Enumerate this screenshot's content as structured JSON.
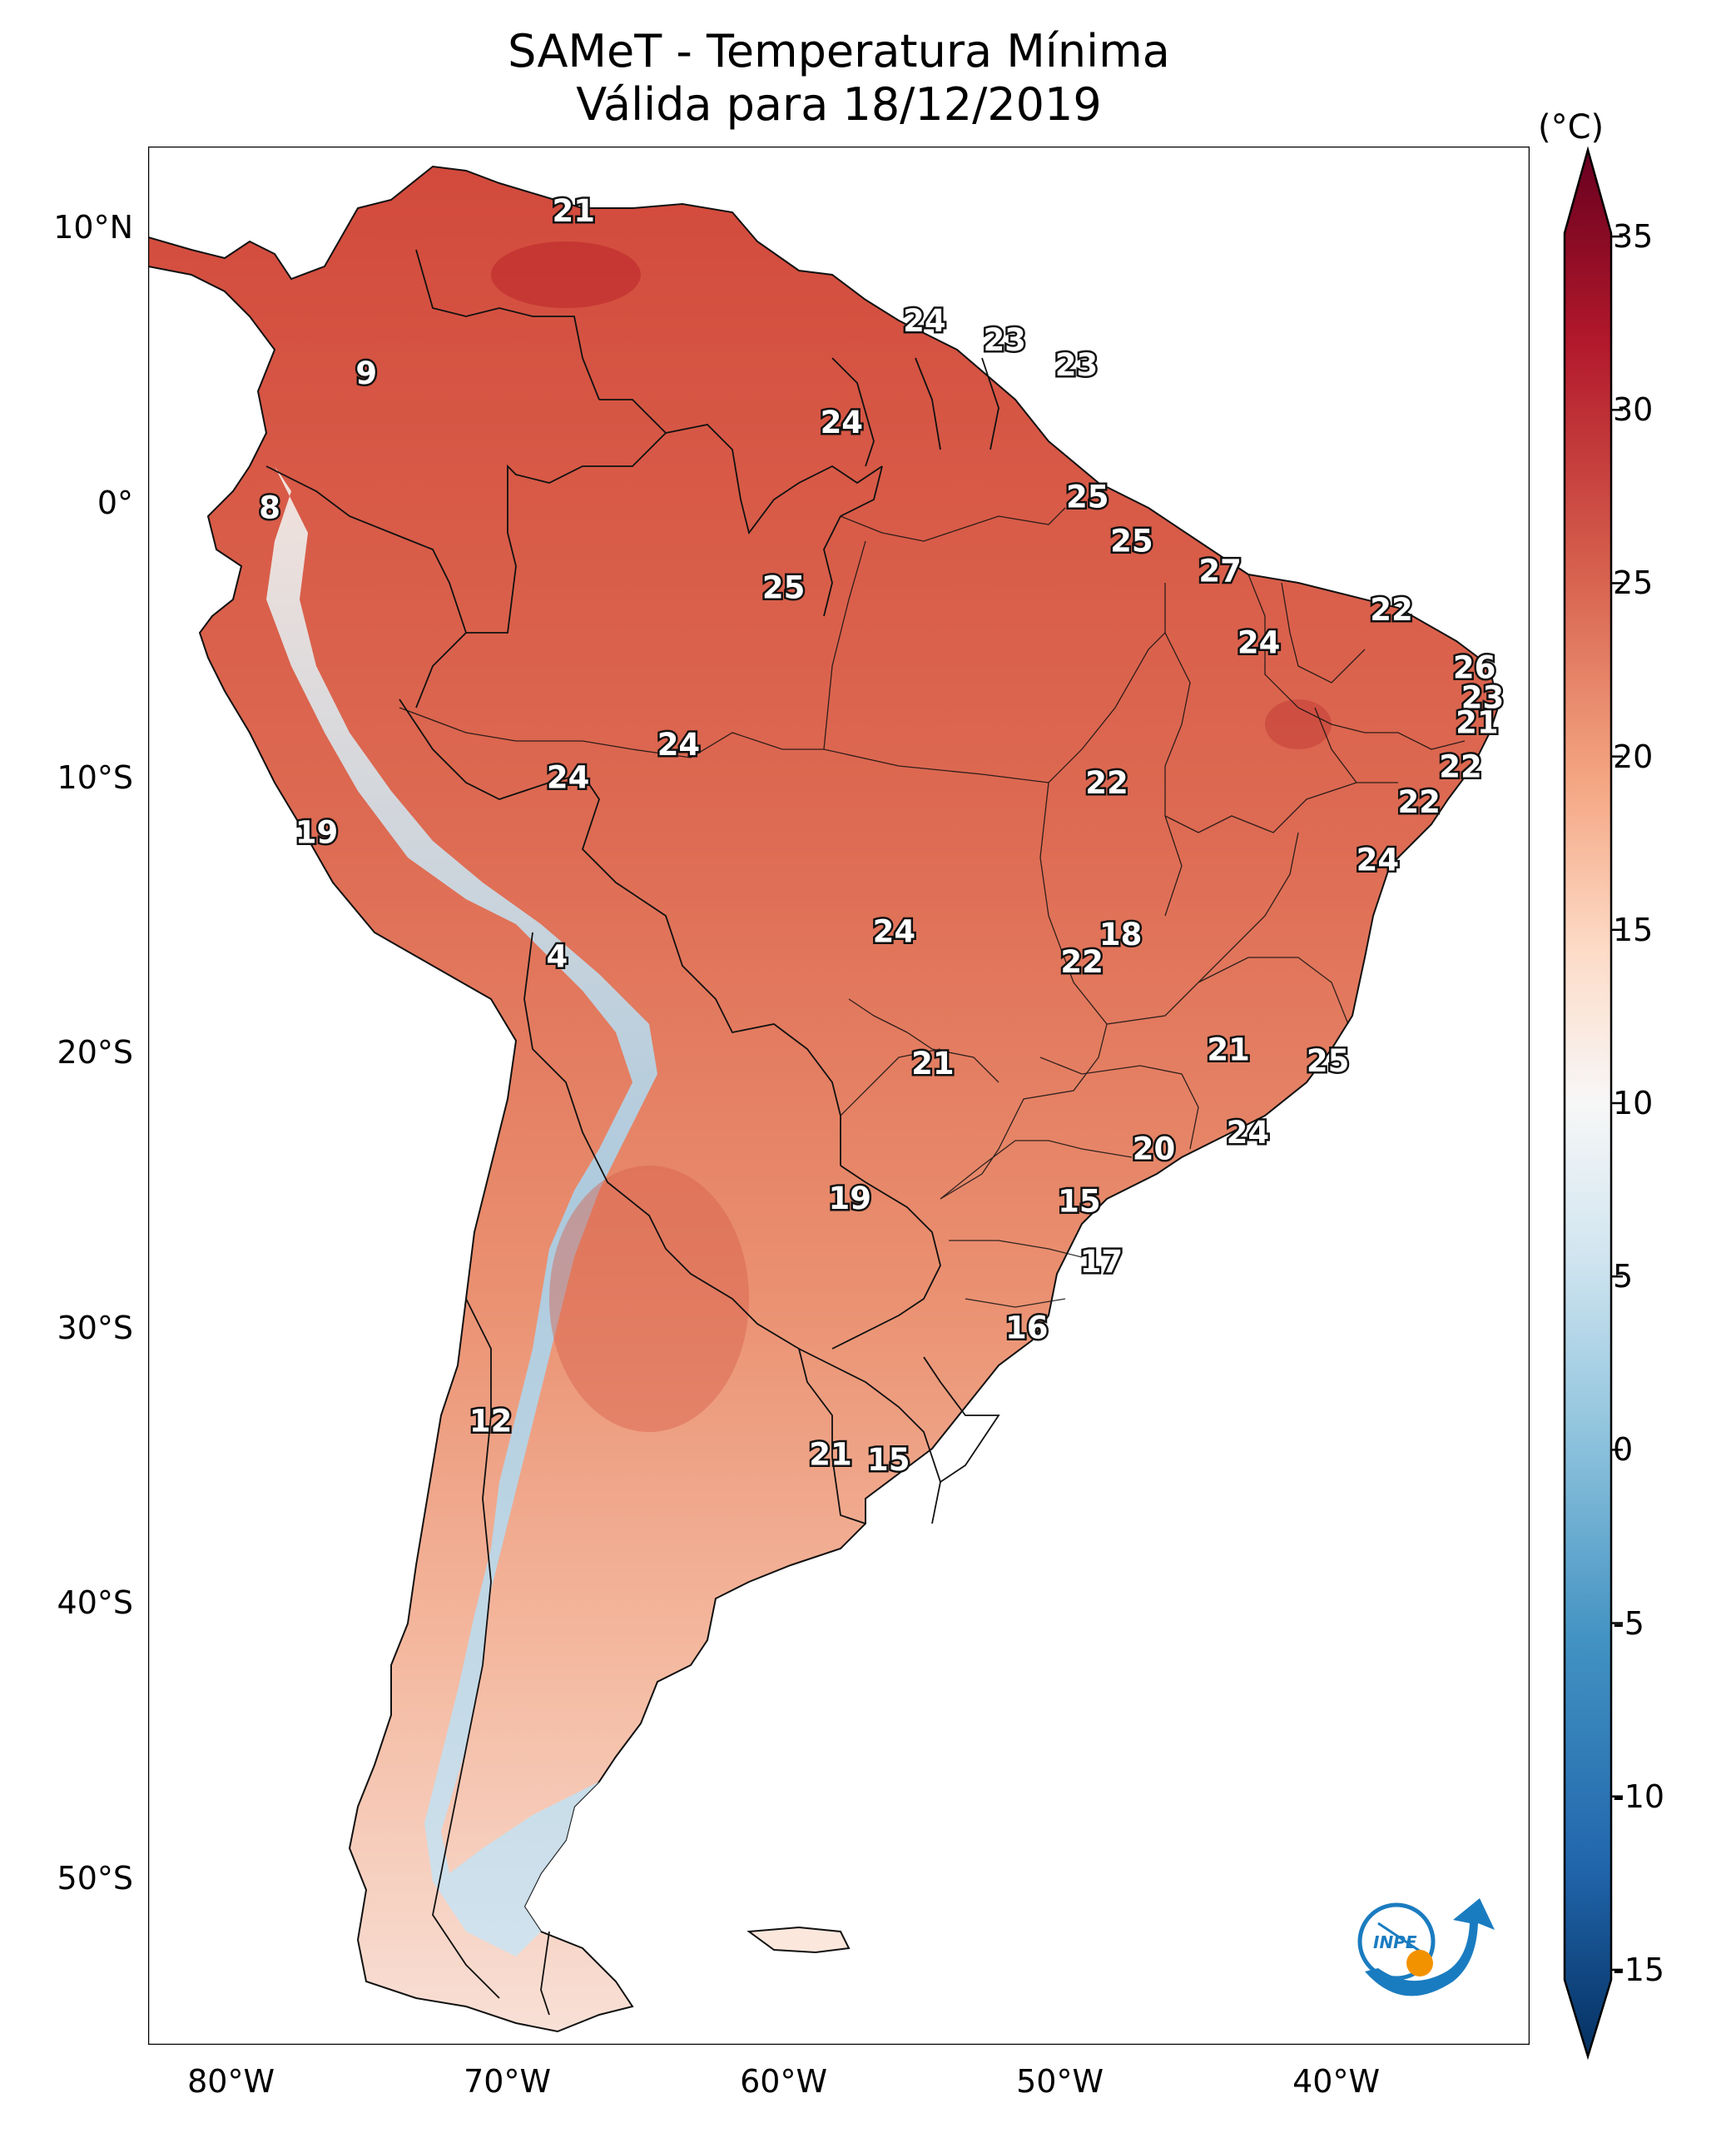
{
  "title": {
    "line1": "SAMeT - Temperatura Mínima",
    "line2": "Válida para 18/12/2019"
  },
  "map": {
    "lon_range": [
      -83,
      -33
    ],
    "lat_range": [
      -56,
      13
    ],
    "lat_ticks": [
      {
        "lat": 10,
        "label": "10°N"
      },
      {
        "lat": 0,
        "label": "0°"
      },
      {
        "lat": -10,
        "label": "10°S"
      },
      {
        "lat": -20,
        "label": "20°S"
      },
      {
        "lat": -30,
        "label": "30°S"
      },
      {
        "lat": -40,
        "label": "40°S"
      },
      {
        "lat": -50,
        "label": "50°S"
      }
    ],
    "lon_ticks": [
      {
        "lon": -80,
        "label": "80°W"
      },
      {
        "lon": -70,
        "label": "70°W"
      },
      {
        "lon": -60,
        "label": "60°W"
      },
      {
        "lon": -50,
        "label": "50°W"
      },
      {
        "lon": -40,
        "label": "40°W"
      }
    ],
    "station_values": [
      {
        "lon": -67.6,
        "lat": 10.6,
        "value": "21"
      },
      {
        "lon": -54.9,
        "lat": 6.6,
        "value": "24"
      },
      {
        "lon": -52.0,
        "lat": 5.9,
        "value": "23"
      },
      {
        "lon": -49.4,
        "lat": 5.0,
        "value": "23"
      },
      {
        "lon": -75.1,
        "lat": 4.7,
        "value": "9"
      },
      {
        "lon": -57.9,
        "lat": 2.9,
        "value": "24"
      },
      {
        "lon": -49.0,
        "lat": 0.2,
        "value": "25"
      },
      {
        "lon": -78.6,
        "lat": -0.2,
        "value": "8"
      },
      {
        "lon": -47.4,
        "lat": -1.4,
        "value": "25"
      },
      {
        "lon": -44.2,
        "lat": -2.5,
        "value": "27"
      },
      {
        "lon": -60.0,
        "lat": -3.1,
        "value": "25"
      },
      {
        "lon": -38.0,
        "lat": -3.9,
        "value": "22"
      },
      {
        "lon": -42.8,
        "lat": -5.1,
        "value": "24"
      },
      {
        "lon": -35.0,
        "lat": -6.0,
        "value": "26"
      },
      {
        "lon": -34.7,
        "lat": -7.1,
        "value": "23"
      },
      {
        "lon": -34.9,
        "lat": -8.0,
        "value": "21"
      },
      {
        "lon": -63.8,
        "lat": -8.8,
        "value": "24"
      },
      {
        "lon": -67.8,
        "lat": -10.0,
        "value": "24"
      },
      {
        "lon": -35.5,
        "lat": -9.6,
        "value": "22"
      },
      {
        "lon": -48.3,
        "lat": -10.2,
        "value": "22"
      },
      {
        "lon": -37.0,
        "lat": -10.9,
        "value": "22"
      },
      {
        "lon": -76.9,
        "lat": -12.0,
        "value": "19"
      },
      {
        "lon": -38.5,
        "lat": -13.0,
        "value": "24"
      },
      {
        "lon": -56.0,
        "lat": -15.6,
        "value": "24"
      },
      {
        "lon": -47.8,
        "lat": -15.7,
        "value": "18"
      },
      {
        "lon": -49.2,
        "lat": -16.7,
        "value": "22"
      },
      {
        "lon": -68.2,
        "lat": -16.5,
        "value": "4"
      },
      {
        "lon": -43.9,
        "lat": -19.9,
        "value": "21"
      },
      {
        "lon": -40.3,
        "lat": -20.3,
        "value": "25"
      },
      {
        "lon": -54.6,
        "lat": -20.4,
        "value": "21"
      },
      {
        "lon": -43.2,
        "lat": -22.9,
        "value": "24"
      },
      {
        "lon": -46.6,
        "lat": -23.5,
        "value": "20"
      },
      {
        "lon": -57.6,
        "lat": -25.3,
        "value": "19"
      },
      {
        "lon": -49.3,
        "lat": -25.4,
        "value": "15"
      },
      {
        "lon": -48.5,
        "lat": -27.6,
        "value": "17"
      },
      {
        "lon": -51.2,
        "lat": -30.0,
        "value": "16"
      },
      {
        "lon": -70.6,
        "lat": -33.4,
        "value": "12"
      },
      {
        "lon": -58.3,
        "lat": -34.6,
        "value": "21"
      },
      {
        "lon": -56.2,
        "lat": -34.8,
        "value": "15"
      }
    ]
  },
  "colorbar": {
    "unit": "(°C)",
    "min": -17.5,
    "max": 37.5,
    "ticks": [
      {
        "value": 35,
        "label": "35"
      },
      {
        "value": 30,
        "label": "30"
      },
      {
        "value": 25,
        "label": "25"
      },
      {
        "value": 20,
        "label": "20"
      },
      {
        "value": 15,
        "label": "15"
      },
      {
        "value": 10,
        "label": "10"
      },
      {
        "value": 5,
        "label": "5"
      },
      {
        "value": 0,
        "label": "0"
      },
      {
        "value": -5,
        "label": "-5"
      },
      {
        "value": -10,
        "label": "-10"
      },
      {
        "value": -15,
        "label": "-15"
      }
    ],
    "colors": [
      "#053061",
      "#2166ac",
      "#4393c3",
      "#92c5de",
      "#d1e5f0",
      "#f7f7f7",
      "#fddbc7",
      "#f4a582",
      "#d6604d",
      "#b2182b",
      "#67001f"
    ]
  },
  "logo": {
    "text": "INPE",
    "colors": {
      "blue": "#1a7cc0",
      "orange": "#f39200"
    }
  }
}
